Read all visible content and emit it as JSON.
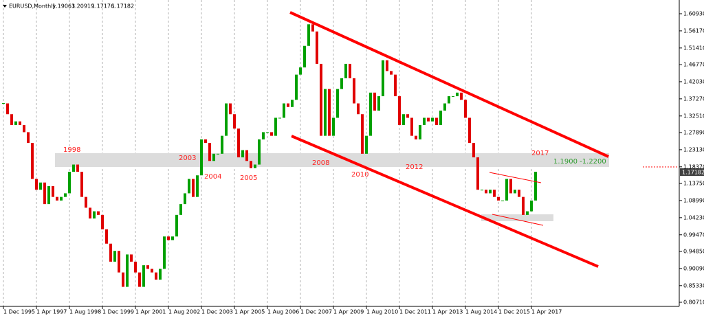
{
  "chart_data": {
    "type": "candlestick",
    "header": {
      "symbol": "EURUSD,Monthly",
      "open": 1.19063,
      "high": 1.20919,
      "low": 1.17176,
      "close": 1.17182
    },
    "categories": [
      "1 Dec 1995",
      null,
      null,
      null,
      null,
      null,
      null,
      null,
      "1 Apr 1997",
      null,
      null,
      null,
      null,
      null,
      null,
      null,
      "1 Aug 1998",
      null,
      null,
      null,
      null,
      null,
      null,
      null,
      "1 Dec 1999",
      null,
      null,
      null,
      null,
      null,
      null,
      null,
      "1 Apr 2001",
      null,
      null,
      null,
      null,
      null,
      null,
      null,
      "1 Aug 2002",
      null,
      null,
      null,
      null,
      null,
      null,
      null,
      "1 Dec 2003",
      null,
      null,
      null,
      null,
      null,
      null,
      null,
      "1 Apr 2005",
      null,
      null,
      null,
      null,
      null,
      null,
      null,
      "1 Aug 2006",
      null,
      null,
      null,
      null,
      null,
      null,
      null,
      "1 Dec 2007",
      null,
      null,
      null,
      null,
      null,
      null,
      null,
      "1 Apr 2009",
      null,
      null,
      null,
      null,
      null,
      null,
      null,
      "1 Aug 2010",
      null,
      null,
      null,
      null,
      null,
      null,
      null,
      "1 Dec 2011",
      null,
      null,
      null,
      null,
      null,
      null,
      null,
      "1 Apr 2013",
      null,
      null,
      null,
      null,
      null,
      null,
      null,
      "1 Aug 2014",
      null,
      null,
      null,
      null,
      null,
      null,
      null,
      "1 Dec 2015",
      null,
      null,
      null,
      null,
      null,
      null,
      null,
      "1 Apr 2017",
      null
    ],
    "values": [
      1.36,
      1.33,
      1.3,
      1.31,
      1.3,
      1.28,
      1.25,
      1.15,
      1.12,
      1.14,
      1.08,
      1.13,
      1.1,
      1.09,
      1.1,
      1.11,
      1.17,
      1.19,
      1.17,
      1.1,
      1.07,
      1.04,
      1.06,
      1.05,
      1.01,
      0.97,
      0.92,
      0.95,
      0.89,
      0.85,
      0.94,
      0.92,
      0.89,
      0.85,
      0.91,
      0.9,
      0.89,
      0.87,
      0.9,
      0.99,
      0.98,
      0.99,
      1.05,
      1.08,
      1.11,
      1.15,
      1.1,
      1.16,
      1.26,
      1.25,
      1.2,
      1.22,
      1.22,
      1.27,
      1.36,
      1.33,
      1.29,
      1.21,
      1.23,
      1.2,
      1.18,
      1.19,
      1.26,
      1.28,
      1.28,
      1.27,
      1.32,
      1.32,
      1.36,
      1.35,
      1.37,
      1.44,
      1.46,
      1.52,
      1.58,
      1.56,
      1.47,
      1.27,
      1.4,
      1.27,
      1.32,
      1.4,
      1.43,
      1.47,
      1.43,
      1.36,
      1.33,
      1.22,
      1.27,
      1.39,
      1.34,
      1.38,
      1.48,
      1.45,
      1.44,
      1.38,
      1.3,
      1.33,
      1.32,
      1.27,
      1.26,
      1.3,
      1.32,
      1.31,
      1.32,
      1.3,
      1.34,
      1.36,
      1.38,
      1.38,
      1.39,
      1.37,
      1.32,
      1.25,
      1.21,
      1.12,
      1.12,
      1.11,
      1.12,
      1.1,
      1.09,
      1.09,
      1.15,
      1.11,
      1.12,
      1.1,
      1.05,
      1.06,
      1.09,
      1.17
    ],
    "up_color": "#00a000",
    "down_color": "#e00000",
    "ylim": [
      0.7842,
      1.6475
    ],
    "yticks": [
      {
        "value": 1.6093,
        "label": "1.60930"
      },
      {
        "value": 1.5617,
        "label": "1.56170"
      },
      {
        "value": 1.5141,
        "label": "1.51410"
      },
      {
        "value": 1.4677,
        "label": "1.46770"
      },
      {
        "value": 1.4203,
        "label": "1.42030"
      },
      {
        "value": 1.3727,
        "label": "1.37270"
      },
      {
        "value": 1.3251,
        "label": "1.32510"
      },
      {
        "value": 1.2789,
        "label": "1.27890"
      },
      {
        "value": 1.2313,
        "label": "1.23130"
      },
      {
        "value": 1.1837,
        "label": "1.18370"
      },
      {
        "value": 1.1375,
        "label": "1.13750"
      },
      {
        "value": 1.0899,
        "label": "1.08990"
      },
      {
        "value": 1.0423,
        "label": "1.04230"
      },
      {
        "value": 0.9947,
        "label": "0.99470"
      },
      {
        "value": 0.9485,
        "label": "0.94850"
      },
      {
        "value": 0.9009,
        "label": "0.90090"
      },
      {
        "value": 0.8533,
        "label": "0.85330"
      },
      {
        "value": 0.8071,
        "label": "0.80710"
      }
    ],
    "annotations": [
      "1998",
      "2003",
      "2004",
      "2005",
      "2008",
      "2010",
      "2012",
      "2017",
      "1.1900 -1.2200"
    ]
  }
}
